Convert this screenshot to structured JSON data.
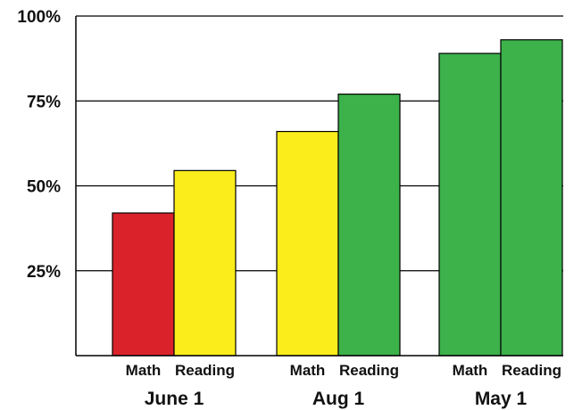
{
  "chart_data": {
    "type": "bar",
    "ylim": [
      0,
      100
    ],
    "yticks": [
      25,
      50,
      75,
      100
    ],
    "ytick_labels": [
      "25%",
      "50%",
      "75%",
      "100%"
    ],
    "grid": true,
    "groups": [
      {
        "label": "June 1",
        "bars": [
          {
            "label": "Math",
            "value": 42,
            "color": "#d9222a"
          },
          {
            "label": "Reading",
            "value": 54.5,
            "color": "#fbec1c"
          }
        ]
      },
      {
        "label": "Aug 1",
        "bars": [
          {
            "label": "Math",
            "value": 66,
            "color": "#fbec1c"
          },
          {
            "label": "Reading",
            "value": 77,
            "color": "#3db14a"
          }
        ]
      },
      {
        "label": "May 1",
        "bars": [
          {
            "label": "Math",
            "value": 89,
            "color": "#3db14a"
          },
          {
            "label": "Reading",
            "value": 93,
            "color": "#3db14a"
          }
        ]
      }
    ]
  }
}
